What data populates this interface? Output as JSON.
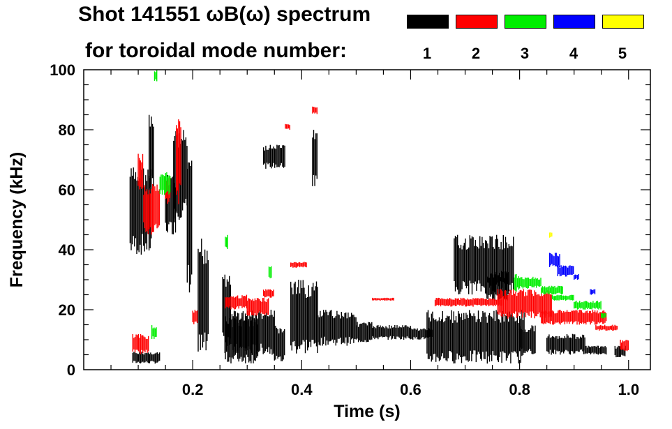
{
  "title_line1": "Shot 141551 ωB(ω) spectrum",
  "title_line2": "for toroidal mode number:",
  "legend": [
    {
      "label": "1",
      "color": "#000000"
    },
    {
      "label": "2",
      "color": "#ff0000"
    },
    {
      "label": "3",
      "color": "#00ee00"
    },
    {
      "label": "4",
      "color": "#0000ff"
    },
    {
      "label": "5",
      "color": "#ffff00"
    }
  ],
  "chart_data": {
    "type": "scatter",
    "title": "Shot 141551 ωB(ω) spectrum",
    "xlabel": "Time (s)",
    "ylabel": "Frequency (kHz)",
    "xlim": [
      0.0,
      1.04
    ],
    "ylim": [
      0,
      100
    ],
    "xticks": [
      0.2,
      0.4,
      0.6,
      0.8,
      1.0
    ],
    "xtick_labels": [
      "0.2",
      "0.4",
      "0.6",
      "0.8",
      "1.0"
    ],
    "yticks": [
      0,
      20,
      40,
      60,
      80,
      100
    ],
    "ytick_labels": [
      "0",
      "20",
      "40",
      "60",
      "80",
      "100"
    ],
    "series": [
      {
        "name": "n=1",
        "color": "#000000",
        "bands": [
          [
            0.085,
            0.125,
            38,
            68
          ],
          [
            0.09,
            0.14,
            2,
            6
          ],
          [
            0.12,
            0.13,
            58,
            85
          ],
          [
            0.15,
            0.17,
            45,
            65
          ],
          [
            0.165,
            0.19,
            50,
            80
          ],
          [
            0.19,
            0.2,
            25,
            70
          ],
          [
            0.21,
            0.23,
            2,
            45
          ],
          [
            0.255,
            0.27,
            5,
            35
          ],
          [
            0.26,
            0.32,
            2,
            18
          ],
          [
            0.27,
            0.35,
            5,
            20
          ],
          [
            0.33,
            0.37,
            67,
            75
          ],
          [
            0.35,
            0.37,
            2,
            15
          ],
          [
            0.38,
            0.43,
            5,
            30
          ],
          [
            0.42,
            0.43,
            60,
            80
          ],
          [
            0.43,
            0.5,
            8,
            20
          ],
          [
            0.5,
            0.53,
            9,
            16
          ],
          [
            0.53,
            0.6,
            10,
            15
          ],
          [
            0.6,
            0.64,
            10,
            14
          ],
          [
            0.63,
            0.81,
            2,
            20
          ],
          [
            0.68,
            0.79,
            25,
            45
          ],
          [
            0.74,
            0.78,
            23,
            33
          ],
          [
            0.8,
            0.83,
            5,
            15
          ],
          [
            0.85,
            0.92,
            5,
            12
          ],
          [
            0.92,
            0.96,
            5,
            8
          ],
          [
            0.975,
            0.995,
            4,
            8
          ]
        ]
      },
      {
        "name": "n=2",
        "color": "#ff0000",
        "bands": [
          [
            0.1,
            0.11,
            60,
            72
          ],
          [
            0.11,
            0.14,
            45,
            62
          ],
          [
            0.15,
            0.16,
            55,
            65
          ],
          [
            0.17,
            0.18,
            55,
            85
          ],
          [
            0.09,
            0.12,
            5,
            12
          ],
          [
            0.2,
            0.21,
            15,
            20
          ],
          [
            0.26,
            0.3,
            20,
            25
          ],
          [
            0.3,
            0.34,
            18,
            24
          ],
          [
            0.33,
            0.35,
            24,
            27
          ],
          [
            0.37,
            0.38,
            80,
            82
          ],
          [
            0.38,
            0.41,
            34,
            36
          ],
          [
            0.42,
            0.43,
            85,
            88
          ],
          [
            0.53,
            0.57,
            23,
            24
          ],
          [
            0.645,
            0.77,
            21,
            24
          ],
          [
            0.76,
            0.86,
            17,
            27
          ],
          [
            0.84,
            0.96,
            15,
            20
          ],
          [
            0.94,
            0.98,
            13,
            15
          ],
          [
            0.985,
            1.0,
            6,
            10
          ]
        ]
      },
      {
        "name": "n=3",
        "color": "#00ee00",
        "bands": [
          [
            0.13,
            0.135,
            96,
            100
          ],
          [
            0.14,
            0.16,
            58,
            66
          ],
          [
            0.125,
            0.135,
            10,
            15
          ],
          [
            0.26,
            0.265,
            40,
            45
          ],
          [
            0.34,
            0.345,
            30,
            35
          ],
          [
            0.79,
            0.8,
            26,
            32
          ],
          [
            0.8,
            0.84,
            27,
            31
          ],
          [
            0.84,
            0.88,
            25,
            28
          ],
          [
            0.86,
            0.9,
            23,
            25
          ],
          [
            0.9,
            0.95,
            20,
            23
          ],
          [
            0.95,
            0.96,
            17,
            19
          ]
        ]
      },
      {
        "name": "n=4",
        "color": "#0000ff",
        "bands": [
          [
            0.855,
            0.875,
            34,
            39
          ],
          [
            0.87,
            0.9,
            31,
            35
          ],
          [
            0.9,
            0.91,
            30,
            32
          ],
          [
            0.93,
            0.94,
            25,
            27
          ]
        ]
      },
      {
        "name": "n=5",
        "color": "#ffff00",
        "bands": [
          [
            0.855,
            0.86,
            44,
            46
          ]
        ]
      }
    ]
  }
}
